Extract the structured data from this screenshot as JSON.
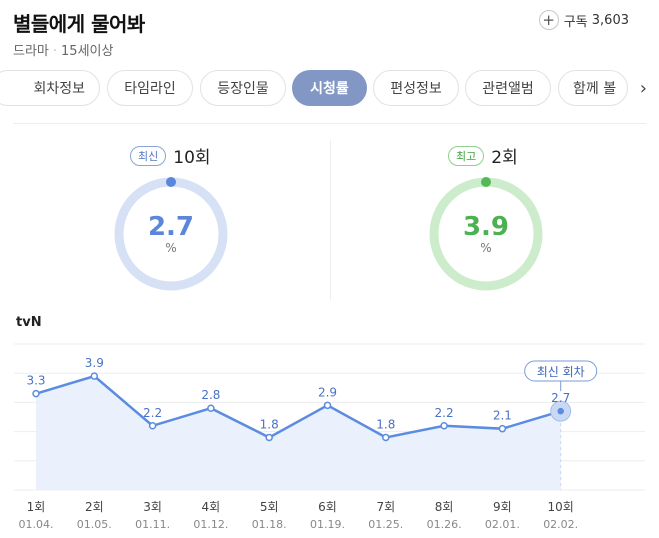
{
  "show": {
    "title": "별들에게 물어봐",
    "genre": "드라마",
    "rating": "15세이상"
  },
  "subscribe": {
    "label": "구독",
    "count": "3,603",
    "icon": "plus-icon"
  },
  "tabs": [
    "회차정보",
    "타임라인",
    "등장인물",
    "시청률",
    "편성정보",
    "관련앨범",
    "함께 볼"
  ],
  "active_tab": "시청률",
  "latest": {
    "badge": "최신",
    "episode": "10회",
    "value": "2.7",
    "unit": "%",
    "color": "#6a8fd8"
  },
  "highest": {
    "badge": "최고",
    "episode": "2회",
    "value": "3.9",
    "unit": "%",
    "color": "#52b957"
  },
  "chart": {
    "channel": "tvN",
    "callout": "최신 회차"
  },
  "chart_data": {
    "type": "line",
    "categories": [
      "1회",
      "2회",
      "3회",
      "4회",
      "5회",
      "6회",
      "7회",
      "8회",
      "9회",
      "10회"
    ],
    "dates": [
      "01.04.",
      "01.05.",
      "01.11.",
      "01.12.",
      "01.18.",
      "01.19.",
      "01.25.",
      "01.26.",
      "02.01.",
      "02.02."
    ],
    "values": [
      3.3,
      3.9,
      2.2,
      2.8,
      1.8,
      2.9,
      1.8,
      2.2,
      2.1,
      2.7
    ],
    "labels": [
      "3.3",
      "3.9",
      "2.2",
      "2.8",
      "1.8",
      "2.9",
      "1.8",
      "2.2",
      "2.1",
      "2.7"
    ],
    "ylim": [
      0,
      5
    ],
    "grid": true,
    "color": "#5b8ce0"
  }
}
